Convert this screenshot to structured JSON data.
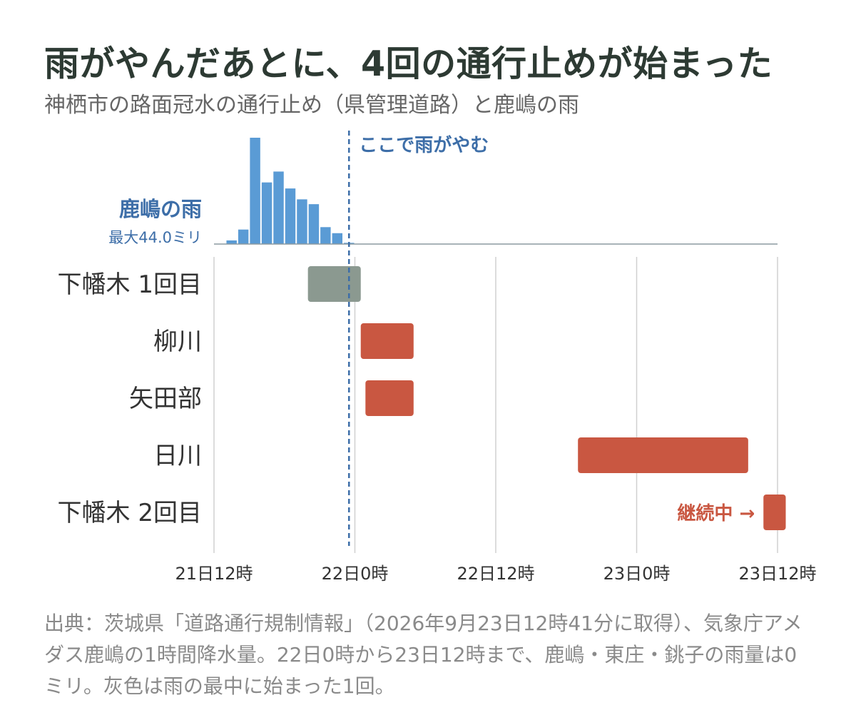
{
  "title": "雨がやんだあとに、4回の通行止めが始まった",
  "subtitle": "神栖市の路面冠水の通行止め（県管理道路）と鹿嶋の雨",
  "source_note": "出典：茨城県「道路通行規制情報」（2026年9月23日12時41分に取得）、気象庁アメダス鹿嶋の1時間降水量。22日0時から23日12時まで、鹿嶋・東庄・銚子の雨量は0ミリ。灰色は雨の最中に始まった1回。",
  "colors": {
    "rain": "#5a9bd5",
    "rain_label": "#3d6ea8",
    "closure": "#c95741",
    "closure_during_rain": "#8b9990",
    "rain_stop_line": "#3d6ea8",
    "grid": "#d0d0d0",
    "axis": "#8c9aa0",
    "text": "#333333"
  },
  "chart_data": [
    {
      "type": "bar",
      "series": [
        {
          "name": "鹿嶋の雨",
          "unit": "ミリ",
          "x_hours_from_21d12": [
            1.5,
            2.5,
            3.5,
            4.5,
            5.5,
            6.5,
            7.5,
            8.5,
            9.5,
            10.5,
            11.5
          ],
          "values": [
            1.5,
            6.0,
            44.0,
            25.5,
            30.0,
            23.0,
            18.5,
            16.5,
            7.0,
            4.5,
            0.5
          ]
        }
      ],
      "series_label": "鹿嶋の雨",
      "max_label": "最大44.0ミリ",
      "ylim": [
        0,
        44
      ],
      "annotation": "ここで雨がやむ",
      "rain_stop_hour": 11.5
    },
    {
      "type": "gantt",
      "x_tick_labels": [
        "21日12時",
        "22日0時",
        "22日12時",
        "23日0時",
        "23日12時"
      ],
      "x_tick_hours": [
        0,
        12,
        24,
        36,
        48
      ],
      "xlim": [
        0,
        48
      ],
      "rows": [
        {
          "label": "下幡木 1回目",
          "start_hour": 8.0,
          "end_hour": 12.5,
          "during_rain": true
        },
        {
          "label": "柳川",
          "start_hour": 12.5,
          "end_hour": 17.0,
          "during_rain": false
        },
        {
          "label": "矢田部",
          "start_hour": 12.9,
          "end_hour": 17.0,
          "during_rain": false
        },
        {
          "label": "日川",
          "start_hour": 31.0,
          "end_hour": 45.5,
          "during_rain": false
        },
        {
          "label": "下幡木 2回目",
          "start_hour": 46.8,
          "end_hour": 48.7,
          "during_rain": false,
          "ongoing": true
        }
      ],
      "ongoing_label": "継続中 →"
    }
  ]
}
